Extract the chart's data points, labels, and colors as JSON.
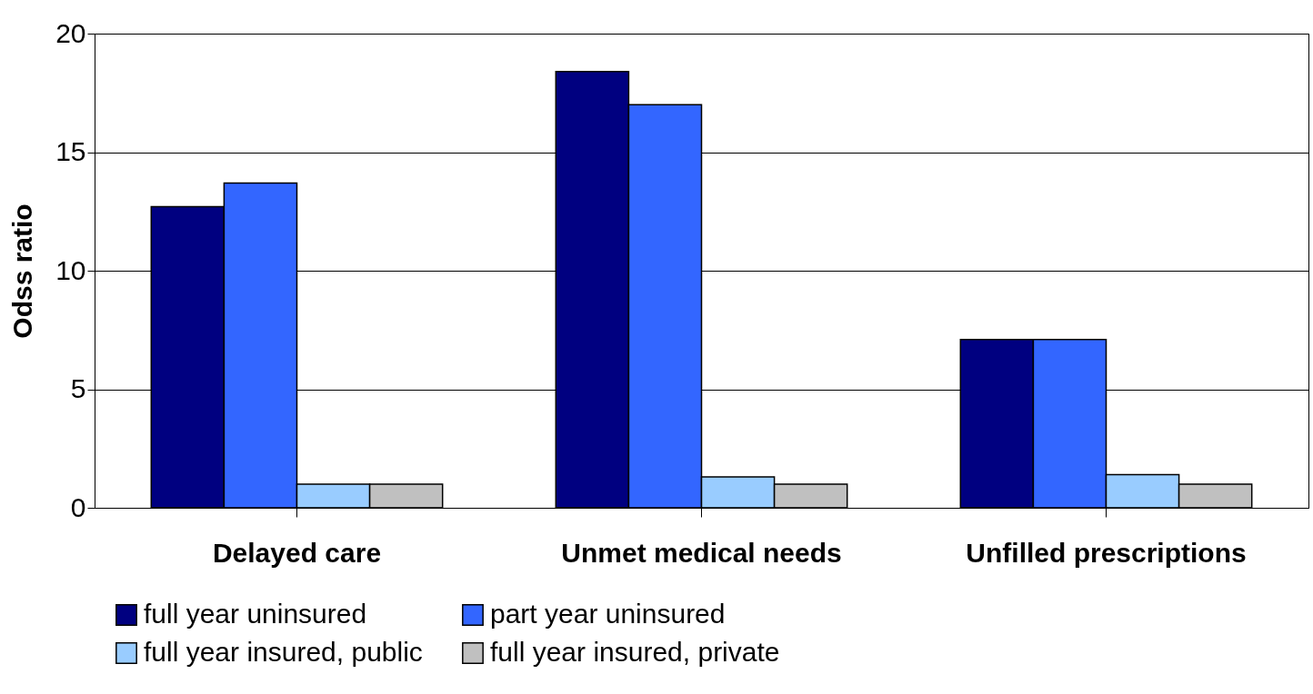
{
  "chart_data": {
    "type": "bar",
    "ylabel": "Odss ratio",
    "categories": [
      "Delayed care",
      "Unmet medical needs",
      "Unfilled prescriptions"
    ],
    "series": [
      {
        "name": "full year uninsured",
        "color": "#000080",
        "values": [
          12.7,
          18.4,
          7.1
        ]
      },
      {
        "name": "part year uninsured",
        "color": "#3366ff",
        "values": [
          13.7,
          17.0,
          7.1
        ]
      },
      {
        "name": "full year insured, public",
        "color": "#99ccff",
        "values": [
          1.0,
          1.3,
          1.4
        ]
      },
      {
        "name": "full year insured, private",
        "color": "#c0c0c0",
        "values": [
          1.0,
          1.0,
          1.0
        ]
      }
    ],
    "ylim": [
      0,
      20
    ],
    "yticks": [
      0,
      5,
      10,
      15,
      20
    ],
    "grid": "y",
    "legend": "bottom"
  }
}
